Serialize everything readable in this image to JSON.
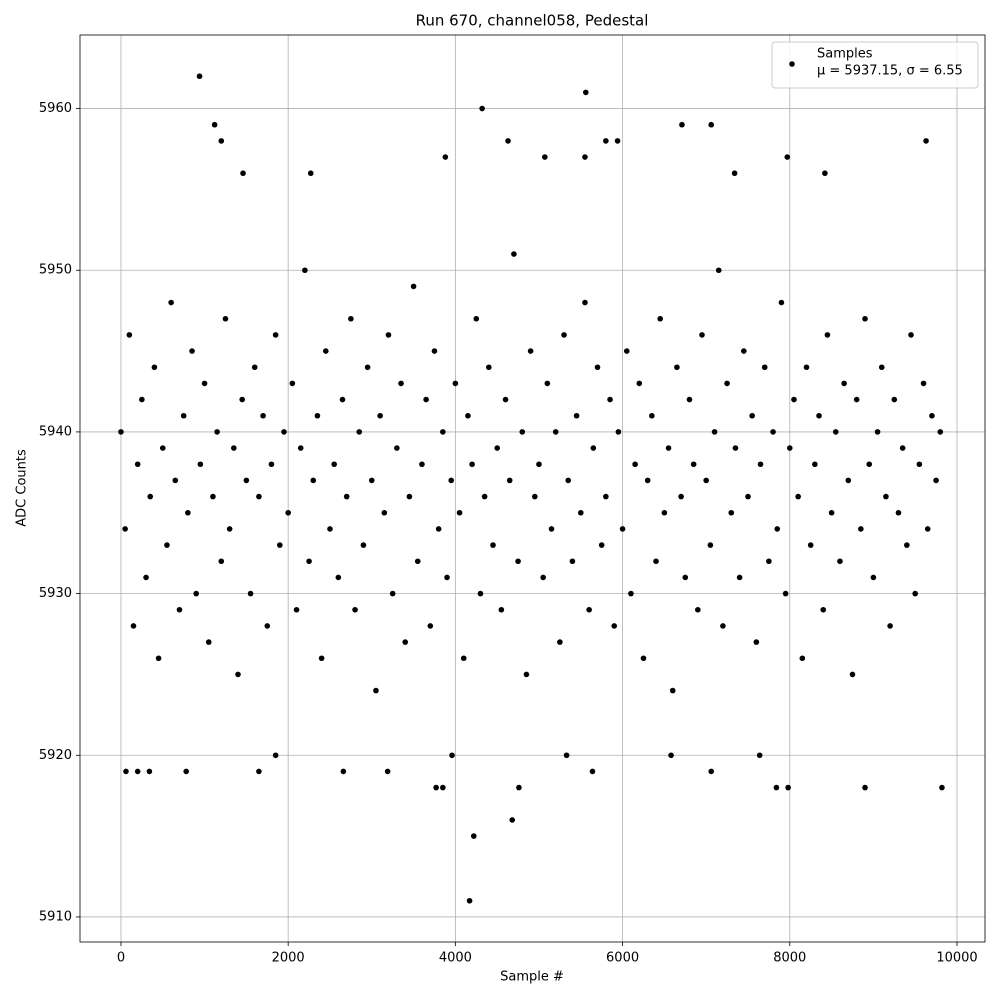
{
  "chart_data": {
    "type": "scatter",
    "title": "Run 670, channel058, Pedestal",
    "x_label": "Sample #",
    "y_label": "ADC Counts",
    "legend_subtitle": "μ = 5937.15, σ = 6.55",
    "legend_position": "upper right",
    "grid": true,
    "xlim": [
      -490,
      10335
    ],
    "ylim": [
      5908.45,
      5964.55
    ],
    "xticks": [
      0,
      2000,
      4000,
      6000,
      8000,
      10000
    ],
    "yticks": [
      5910,
      5920,
      5930,
      5940,
      5950,
      5960
    ],
    "x": [
      0,
      50,
      100,
      150,
      200,
      250,
      300,
      350,
      400,
      450,
      500,
      550,
      600,
      650,
      700,
      750,
      800,
      850,
      900,
      950,
      1000,
      1050,
      1100,
      1150,
      1200,
      1250,
      1300,
      1350,
      1400,
      1450,
      1500,
      1550,
      1600,
      1650,
      1700,
      1750,
      1800,
      1850,
      1900,
      1950,
      2000,
      2050,
      2100,
      2150,
      2200,
      2250,
      2300,
      2350,
      2400,
      2450,
      2500,
      2550,
      2600,
      2650,
      2700,
      2750,
      2800,
      2850,
      2900,
      2950,
      3000,
      3050,
      3100,
      3150,
      3200,
      3250,
      3300,
      3350,
      3400,
      3450,
      3500,
      3550,
      3600,
      3650,
      3700,
      3750,
      3800,
      3850,
      3900,
      3950,
      4000,
      4050,
      4100,
      4150,
      4200,
      4250,
      4300,
      4350,
      4400,
      4450,
      4500,
      4550,
      4600,
      4650,
      4700,
      4750,
      4800,
      4850,
      4900,
      4950,
      5000,
      5050,
      5100,
      5150,
      5200,
      5250,
      5300,
      5350,
      5400,
      5450,
      5500,
      5550,
      5600,
      5650,
      5700,
      5750,
      5800,
      5850,
      5900,
      5950,
      6000,
      6050,
      6100,
      6150,
      6200,
      6250,
      6300,
      6350,
      6400,
      6450,
      6500,
      6550,
      6600,
      6650,
      6700,
      6750,
      6800,
      6850,
      6900,
      6950,
      7000,
      7050,
      7100,
      7150,
      7200,
      7250,
      7300,
      7350,
      7400,
      7450,
      7500,
      7550,
      7600,
      7650,
      7700,
      7750,
      7800,
      7850,
      7900,
      7950,
      8000,
      8050,
      8100,
      8150,
      8200,
      8250,
      8300,
      8350,
      8400,
      8450,
      8500,
      8550,
      8600,
      8650,
      8700,
      8750,
      8800,
      8850,
      8900,
      8950,
      9000,
      9050,
      9100,
      9150,
      9200,
      9250,
      9300,
      9350,
      9400,
      9450,
      9500,
      9550,
      9600,
      9650,
      9700,
      9750,
      9800,
      940,
      1120,
      1200,
      4320,
      5560,
      4170,
      4220,
      4680,
      4760,
      3770,
      3850,
      6710,
      7060,
      9630,
      9820,
      8900,
      7980,
      7840,
      60,
      200,
      340,
      780,
      1650,
      2660,
      3190,
      5640,
      7060,
      1850,
      3960,
      5330,
      6580,
      7640,
      3880,
      4630,
      5070,
      5800,
      5940,
      7970,
      2270,
      1460,
      8420,
      7340,
      5550
    ],
    "series": [
      {
        "name": "Samples",
        "color": "#000000",
        "values": [
          5940,
          5934,
          5946,
          5928,
          5938,
          5942,
          5931,
          5936,
          5944,
          5926,
          5939,
          5933,
          5948,
          5937,
          5929,
          5941,
          5935,
          5945,
          5930,
          5938,
          5943,
          5927,
          5936,
          5940,
          5932,
          5947,
          5934,
          5939,
          5925,
          5942,
          5937,
          5930,
          5944,
          5936,
          5941,
          5928,
          5938,
          5946,
          5933,
          5940,
          5935,
          5943,
          5929,
          5939,
          5950,
          5932,
          5937,
          5941,
          5926,
          5945,
          5934,
          5938,
          5931,
          5942,
          5936,
          5947,
          5929,
          5940,
          5933,
          5944,
          5937,
          5924,
          5941,
          5935,
          5946,
          5930,
          5939,
          5943,
          5927,
          5936,
          5949,
          5932,
          5938,
          5942,
          5928,
          5945,
          5934,
          5940,
          5931,
          5937,
          5943,
          5935,
          5926,
          5941,
          5938,
          5947,
          5930,
          5936,
          5944,
          5933,
          5939,
          5929,
          5942,
          5937,
          5951,
          5932,
          5940,
          5925,
          5945,
          5936,
          5938,
          5931,
          5943,
          5934,
          5940,
          5927,
          5946,
          5937,
          5932,
          5941,
          5935,
          5948,
          5929,
          5939,
          5944,
          5933,
          5936,
          5942,
          5928,
          5940,
          5934,
          5945,
          5930,
          5938,
          5943,
          5926,
          5937,
          5941,
          5932,
          5947,
          5935,
          5939,
          5924,
          5944,
          5936,
          5931,
          5942,
          5938,
          5929,
          5946,
          5937,
          5933,
          5940,
          5950,
          5928,
          5943,
          5935,
          5939,
          5931,
          5945,
          5936,
          5941,
          5927,
          5938,
          5944,
          5932,
          5940,
          5934,
          5948,
          5930,
          5939,
          5942,
          5936,
          5926,
          5944,
          5933,
          5938,
          5941,
          5929,
          5946,
          5935,
          5940,
          5932,
          5943,
          5937,
          5925,
          5942,
          5934,
          5947,
          5938,
          5931,
          5940,
          5944,
          5936,
          5928,
          5942,
          5935,
          5939,
          5933,
          5946,
          5930,
          5938,
          5943,
          5934,
          5941,
          5937,
          5940,
          5962,
          5959,
          5958,
          5960,
          5961,
          5911,
          5915,
          5916,
          5918,
          5918,
          5918,
          5959,
          5959,
          5958,
          5918,
          5918,
          5918,
          5918,
          5919,
          5919,
          5919,
          5919,
          5919,
          5919,
          5919,
          5919,
          5919,
          5920,
          5920,
          5920,
          5920,
          5920,
          5957,
          5958,
          5957,
          5958,
          5958,
          5957,
          5956,
          5956,
          5956,
          5956,
          5957
        ]
      }
    ]
  }
}
